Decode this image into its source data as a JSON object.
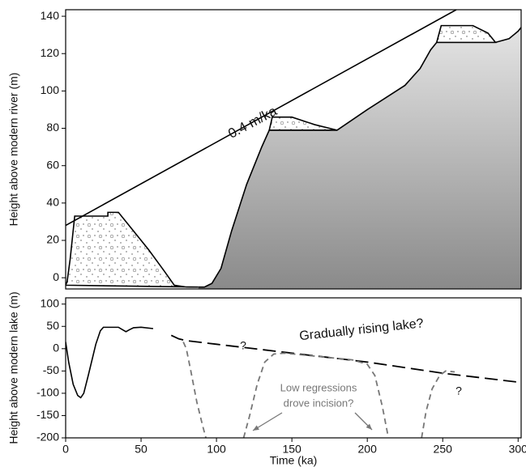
{
  "chart_data": [
    {
      "type": "line",
      "ylabel": "Height above modern river (m)",
      "xlim": [
        0,
        302
      ],
      "ylim": [
        -6,
        143.5
      ],
      "yticks": [
        0,
        20,
        40,
        60,
        80,
        100,
        120,
        140
      ],
      "series": [
        {
          "x": [
            88,
            92,
            97,
            103,
            110,
            120,
            130,
            135,
            180,
            200,
            225,
            235,
            242,
            246,
            285,
            294,
            300,
            302
          ],
          "values": [
            -5,
            -5,
            -3,
            5,
            25,
            50,
            70,
            79,
            79,
            90,
            103,
            112,
            122,
            126,
            126,
            128,
            132,
            134
          ],
          "color": "#000000",
          "fill": "gradient",
          "style": "solid"
        },
        {
          "x": [
            0,
            1,
            3,
            6,
            28,
            28,
            35,
            40,
            55,
            65,
            72,
            80,
            88
          ],
          "values": [
            -4,
            -2,
            10,
            33,
            33,
            35,
            35,
            30,
            15,
            4,
            -4,
            -5,
            -5
          ],
          "color": "#000000",
          "fill": "dots",
          "style": "solid"
        },
        {
          "x": [
            135,
            137,
            150,
            165,
            180
          ],
          "values": [
            79,
            86,
            86,
            82,
            79
          ],
          "color": "#000000",
          "fill": "dots",
          "style": "solid"
        },
        {
          "x": [
            246,
            249,
            270,
            280,
            285
          ],
          "values": [
            126,
            135,
            135,
            131,
            126
          ],
          "color": "#000000",
          "fill": "dots",
          "style": "solid"
        },
        {
          "x": [
            0,
            259
          ],
          "values": [
            28,
            143.5
          ],
          "color": "#000000",
          "fill": "none",
          "style": "solid"
        }
      ],
      "annotations": [
        "0.4 m/ka"
      ]
    },
    {
      "type": "line",
      "ylabel": "Height above modern lake (m)",
      "xlabel": "Time (ka)",
      "xlim": [
        0,
        302
      ],
      "ylim": [
        -200,
        114
      ],
      "xticks": [
        0,
        50,
        100,
        150,
        200,
        250,
        300
      ],
      "yticks": [
        100,
        50,
        0,
        -50,
        -100,
        -150,
        -200
      ],
      "series": [
        {
          "x": [
            0,
            2,
            5,
            8,
            10,
            12,
            15,
            20,
            23,
            25,
            30,
            35,
            38,
            40,
            42,
            45,
            50,
            58
          ],
          "values": [
            15,
            -30,
            -80,
            -105,
            -110,
            -100,
            -60,
            10,
            40,
            48,
            48,
            48,
            42,
            38,
            42,
            47,
            48,
            45
          ],
          "color": "#000000",
          "fill": "none",
          "style": "solid"
        },
        {
          "x": [
            70,
            75,
            80,
            100,
            150,
            200,
            250,
            300
          ],
          "values": [
            30,
            22,
            18,
            10,
            -10,
            -30,
            -55,
            -75
          ],
          "color": "#000000",
          "fill": "none",
          "style": "dash"
        },
        {
          "x": [
            78,
            80,
            83,
            87,
            91,
            93
          ],
          "values": [
            15,
            0,
            -50,
            -120,
            -175,
            -200
          ],
          "color": "#777777",
          "fill": "none",
          "style": "dot"
        },
        {
          "x": [
            118,
            122,
            127,
            132,
            138,
            145,
            190,
            200,
            205,
            210,
            214
          ],
          "values": [
            -200,
            -150,
            -80,
            -30,
            -12,
            -10,
            -25,
            -35,
            -60,
            -130,
            -200
          ],
          "color": "#777777",
          "fill": "none",
          "style": "dot"
        },
        {
          "x": [
            236,
            239,
            243,
            248,
            252,
            258
          ],
          "values": [
            -200,
            -140,
            -90,
            -60,
            -50,
            -52
          ],
          "color": "#777777",
          "fill": "none",
          "style": "dot"
        }
      ],
      "annotations": [
        "Gradually rising lake?",
        "?",
        "?",
        "Low regressions",
        "drove incision?"
      ]
    }
  ]
}
